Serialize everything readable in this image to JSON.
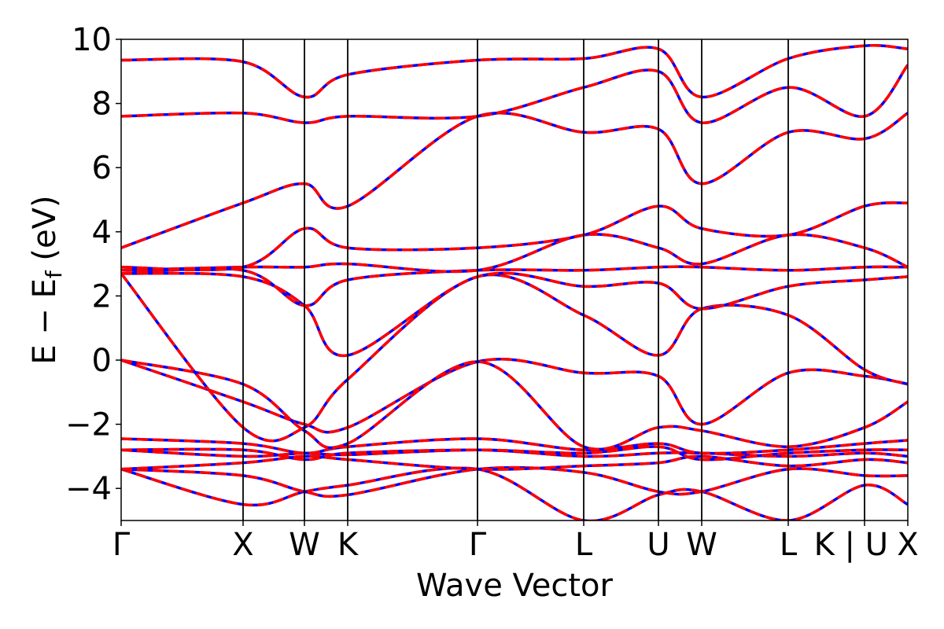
{
  "chart_data": {
    "type": "line",
    "title": "",
    "xlabel": "Wave Vector",
    "ylabel": "E − E_f (eV)",
    "ylabel_main": "E − E",
    "ylabel_sub": "f",
    "ylabel_tail": " (eV)",
    "ylim": [
      -5,
      10
    ],
    "yticks": [
      -4,
      -2,
      0,
      2,
      4,
      6,
      8,
      10
    ],
    "ytick_labels": [
      "−4",
      "−2",
      "0",
      "2",
      "4",
      "6",
      "8",
      "10"
    ],
    "xlim": [
      0,
      1
    ],
    "high_symmetry_points": [
      {
        "label": "Γ",
        "x": 0.0
      },
      {
        "label": "X",
        "x": 0.155
      },
      {
        "label": "W",
        "x": 0.233
      },
      {
        "label": "K",
        "x": 0.288
      },
      {
        "label": "Γ",
        "x": 0.453
      },
      {
        "label": "L",
        "x": 0.588
      },
      {
        "label": "U",
        "x": 0.683
      },
      {
        "label": "W",
        "x": 0.738
      },
      {
        "label": "L",
        "x": 0.848
      },
      {
        "label": "K | U",
        "x": 0.945
      },
      {
        "label": "X",
        "x": 1.0
      }
    ],
    "grid": false,
    "legend": "none",
    "series_styles": [
      {
        "color": "#0000ff",
        "style": "solid"
      },
      {
        "color": "#ff0000",
        "style": "dashed"
      }
    ],
    "bands": [
      {
        "x": [
          0,
          0.155,
          0.233,
          0.288,
          0.453,
          0.588,
          0.683,
          0.738,
          0.848,
          0.945,
          1
        ],
        "y": [
          -3.4,
          -4.5,
          -4.1,
          -3.9,
          -3.4,
          -5.0,
          -4.2,
          -4.1,
          -5.0,
          -3.9,
          -4.5
        ]
      },
      {
        "x": [
          0,
          0.155,
          0.233,
          0.288,
          0.453,
          0.588,
          0.683,
          0.738,
          0.848,
          0.945,
          1
        ],
        "y": [
          -3.4,
          -3.6,
          -4.1,
          -4.2,
          -3.4,
          -3.5,
          -4.1,
          -4.1,
          -3.4,
          -3.6,
          -3.6
        ]
      },
      {
        "x": [
          0,
          0.155,
          0.233,
          0.288,
          0.453,
          0.588,
          0.683,
          0.738,
          0.848,
          0.945,
          1
        ],
        "y": [
          -3.4,
          -3.2,
          -3.0,
          -3.1,
          -3.4,
          -3.3,
          -3.2,
          -3.0,
          -3.3,
          -3.1,
          -3.2
        ]
      },
      {
        "x": [
          0,
          0.155,
          0.233,
          0.288,
          0.453,
          0.588,
          0.683,
          0.738,
          0.848,
          0.945,
          1
        ],
        "y": [
          -2.8,
          -3.0,
          -2.9,
          -2.95,
          -2.8,
          -3.0,
          -2.9,
          -2.9,
          -3.0,
          -2.9,
          -3.0
        ]
      },
      {
        "x": [
          0,
          0.155,
          0.233,
          0.288,
          0.453,
          0.588,
          0.683,
          0.738,
          0.848,
          0.945,
          1
        ],
        "y": [
          -2.8,
          -2.8,
          -3.1,
          -2.9,
          -2.8,
          -2.9,
          -2.7,
          -3.1,
          -2.9,
          -2.8,
          -2.8
        ]
      },
      {
        "x": [
          0,
          0.155,
          0.233,
          0.288,
          0.453,
          0.588,
          0.683,
          0.738,
          0.848,
          0.945,
          1
        ],
        "y": [
          -2.45,
          -2.6,
          -2.9,
          -2.7,
          -2.45,
          -2.8,
          -2.6,
          -2.9,
          -2.8,
          -2.6,
          -2.5
        ]
      },
      {
        "x": [
          0,
          0.155,
          0.233,
          0.288,
          0.453,
          0.588,
          0.683,
          0.738,
          0.848,
          0.945,
          1
        ],
        "y": [
          0.0,
          -1.3,
          -2.0,
          -2.1,
          -0.05,
          -0.4,
          -0.5,
          -2.0,
          -0.4,
          -0.5,
          -0.75
        ]
      },
      {
        "x": [
          0,
          0.155,
          0.233,
          0.288,
          0.453,
          0.588,
          0.683,
          0.738,
          0.848,
          0.945,
          1
        ],
        "y": [
          0.0,
          -0.75,
          -2.2,
          -2.6,
          -0.05,
          -2.7,
          -2.1,
          -2.2,
          -2.7,
          -2.1,
          -1.3
        ]
      },
      {
        "x": [
          0,
          0.155,
          0.233,
          0.288,
          0.453,
          0.588,
          0.683,
          0.738,
          0.848,
          0.945,
          1
        ],
        "y": [
          2.7,
          -2.1,
          -2.1,
          -0.6,
          2.6,
          1.4,
          0.15,
          1.6,
          1.4,
          -0.3,
          -0.75
        ]
      },
      {
        "x": [
          0,
          0.155,
          0.233,
          0.288,
          0.453,
          0.588,
          0.683,
          0.738,
          0.848,
          0.945,
          1
        ],
        "y": [
          2.7,
          2.6,
          1.7,
          0.15,
          2.6,
          2.3,
          2.4,
          1.6,
          2.3,
          2.5,
          2.6
        ]
      },
      {
        "x": [
          0,
          0.155,
          0.233,
          0.288,
          0.453,
          0.588,
          0.683,
          0.738,
          0.848,
          0.945,
          1
        ],
        "y": [
          2.7,
          2.8,
          1.7,
          2.5,
          2.8,
          2.8,
          2.9,
          2.9,
          2.8,
          2.9,
          2.9
        ]
      },
      {
        "x": [
          0,
          0.155,
          0.233,
          0.288,
          0.453,
          0.588,
          0.683,
          0.738,
          0.848,
          0.945,
          1
        ],
        "y": [
          2.8,
          2.9,
          2.9,
          3.0,
          2.8,
          3.9,
          3.5,
          3.0,
          3.9,
          3.5,
          2.9
        ]
      },
      {
        "x": [
          0,
          0.155,
          0.233,
          0.288,
          0.453,
          0.588,
          0.683,
          0.738,
          0.848,
          0.945,
          1
        ],
        "y": [
          2.9,
          2.9,
          4.1,
          3.5,
          3.5,
          3.9,
          4.8,
          4.1,
          3.9,
          4.8,
          4.9
        ]
      },
      {
        "x": [
          0,
          0.155,
          0.233,
          0.288,
          0.453,
          0.588,
          0.683,
          0.738,
          0.848,
          0.945,
          1
        ],
        "y": [
          3.5,
          4.9,
          5.5,
          4.8,
          7.6,
          7.1,
          7.2,
          5.5,
          7.1,
          6.9,
          7.7
        ]
      },
      {
        "x": [
          0,
          0.155,
          0.233,
          0.288,
          0.453,
          0.588,
          0.683,
          0.738,
          0.848,
          0.945,
          1
        ],
        "y": [
          7.6,
          7.7,
          7.4,
          7.6,
          7.6,
          8.5,
          9.0,
          7.4,
          8.5,
          7.6,
          9.2
        ]
      },
      {
        "x": [
          0,
          0.155,
          0.233,
          0.288,
          0.453,
          0.588,
          0.683,
          0.738,
          0.848,
          0.945,
          1
        ],
        "y": [
          9.35,
          9.3,
          8.2,
          8.9,
          9.35,
          9.4,
          9.7,
          8.2,
          9.4,
          9.8,
          9.7
        ]
      }
    ]
  }
}
